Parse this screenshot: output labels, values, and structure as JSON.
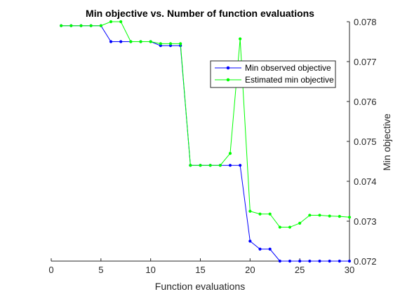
{
  "chart_data": {
    "type": "line",
    "title": "Min objective vs. Number of function evaluations",
    "xlabel": "Function evaluations",
    "ylabel": "Min objective",
    "xlim": [
      0,
      30
    ],
    "ylim": [
      0.072,
      0.078
    ],
    "x_ticks": [
      "0",
      "5",
      "10",
      "15",
      "20",
      "25",
      "30"
    ],
    "y_ticks": [
      "0.072",
      "0.073",
      "0.074",
      "0.075",
      "0.076",
      "0.077",
      "0.078"
    ],
    "y_axis_side": "right",
    "grid": false,
    "legend_position": "top-right",
    "x": [
      1,
      2,
      3,
      4,
      5,
      6,
      7,
      8,
      9,
      10,
      11,
      12,
      13,
      14,
      15,
      16,
      17,
      18,
      19,
      20,
      21,
      22,
      23,
      24,
      25,
      26,
      27,
      28,
      29,
      30
    ],
    "series": [
      {
        "name": "Min observed objective",
        "color": "#0000ff",
        "values": [
          0.0779,
          0.0779,
          0.0779,
          0.0779,
          0.0779,
          0.0775,
          0.0775,
          0.0775,
          0.0775,
          0.0775,
          0.0774,
          0.0774,
          0.0774,
          0.0744,
          0.0744,
          0.0744,
          0.0744,
          0.0744,
          0.0744,
          0.0725,
          0.0723,
          0.0723,
          0.072,
          0.072,
          0.072,
          0.072,
          0.072,
          0.072,
          0.072,
          0.072
        ]
      },
      {
        "name": "Estimated min objective",
        "color": "#00ff00",
        "values": [
          0.0779,
          0.0779,
          0.0779,
          0.0779,
          0.0779,
          0.078,
          0.078,
          0.0775,
          0.0775,
          0.0775,
          0.07745,
          0.07745,
          0.07745,
          0.0744,
          0.0744,
          0.0744,
          0.0744,
          0.0747,
          0.07757,
          0.07325,
          0.07318,
          0.07318,
          0.07285,
          0.07285,
          0.07295,
          0.07315,
          0.07315,
          0.07313,
          0.07312,
          0.0731
        ]
      }
    ]
  }
}
